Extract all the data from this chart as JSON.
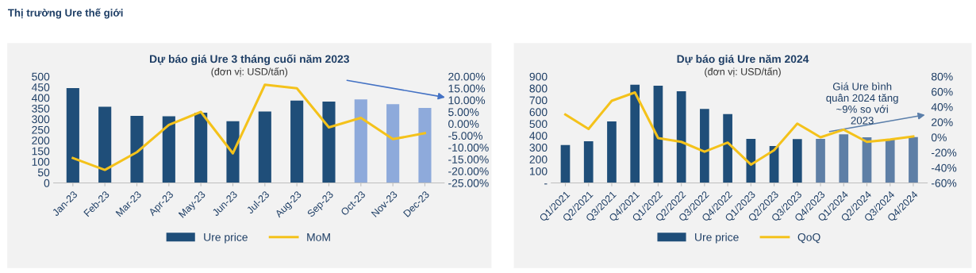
{
  "chart_data": [
    {
      "type": "bar",
      "title": "Dự báo giá Ure 3 tháng cuối năm 2023",
      "subtitle": "(đơn vị: USD/tấn)",
      "annotations": [
        "Thị trường Ure thế giới"
      ],
      "categories": [
        "Jan-23",
        "Feb-23",
        "Mar-23",
        "Apr-23",
        "May-23",
        "Jun-23",
        "Jul-23",
        "Aug-23",
        "Sep-23",
        "Oct-23",
        "Nov-23",
        "Dec-23"
      ],
      "series": [
        {
          "name": "Ure price",
          "color": "#1f4e79",
          "colors": [
            "#1f4e79",
            "#1f4e79",
            "#1f4e79",
            "#1f4e79",
            "#1f4e79",
            "#1f4e79",
            "#1f4e79",
            "#1f4e79",
            "#1f4e79",
            "#8eaadb",
            "#8eaadb",
            "#8eaadb"
          ],
          "values": [
            445,
            358,
            315,
            313,
            330,
            290,
            335,
            387,
            382,
            392,
            370,
            352
          ]
        },
        {
          "name": "MoM",
          "type": "line",
          "axis": "y2",
          "color": "#f4c21b",
          "values": [
            -14.5,
            -19.5,
            -12,
            -0.5,
            5,
            -12.5,
            16.5,
            15,
            -1.5,
            2.5,
            -6.5,
            -4
          ]
        }
      ],
      "ylim": [
        0,
        500
      ],
      "yticks": [
        0,
        50,
        100,
        150,
        200,
        250,
        300,
        350,
        400,
        450,
        500
      ],
      "y2lim": [
        -25,
        20
      ],
      "y2ticks": [
        {
          "value": -25,
          "label": "-25.00%"
        },
        {
          "value": -20,
          "label": "-20.00%"
        },
        {
          "value": -15,
          "label": "-15.00%"
        },
        {
          "value": -10,
          "label": "-10.00%"
        },
        {
          "value": -5,
          "label": "-5.00%"
        },
        {
          "value": 0,
          "label": "0.00%"
        },
        {
          "value": 5,
          "label": "5.00%"
        },
        {
          "value": 10,
          "label": "10.00%"
        },
        {
          "value": 15,
          "label": "15.00%"
        },
        {
          "value": 20,
          "label": "20.00%"
        }
      ],
      "legend": "bottom",
      "marker": "none"
    },
    {
      "type": "bar",
      "title": "Dự báo giá Ure năm 2024",
      "subtitle": "(đơn vị: USD/tấn)",
      "annotations": [
        "Giá Ure bình\nquân 2024 tăng\n~9% so với\n2023"
      ],
      "categories": [
        "Q1/2021",
        "Q2/2021",
        "Q3/2021",
        "Q4/2021",
        "Q1/2022",
        "Q2/2022",
        "Q3/2022",
        "Q4/2022",
        "Q1/2023",
        "Q2/2023",
        "Q3/2023",
        "Q4/2023",
        "Q1/2024",
        "Q2/2024",
        "Q3/2024",
        "Q4/2024"
      ],
      "series": [
        {
          "name": "Ure price",
          "color": "#1f4e79",
          "colors": [
            "#1f4e79",
            "#1f4e79",
            "#1f4e79",
            "#1f4e79",
            "#1f4e79",
            "#1f4e79",
            "#1f4e79",
            "#1f4e79",
            "#1f4e79",
            "#1f4e79",
            "#1f4e79",
            "#5e7fa6",
            "#5e7fa6",
            "#5e7fa6",
            "#5e7fa6",
            "#5e7fa6"
          ],
          "values": [
            320,
            352,
            520,
            830,
            822,
            775,
            625,
            582,
            372,
            312,
            370,
            372,
            410,
            385,
            370,
            388
          ]
        },
        {
          "name": "QoQ",
          "type": "line",
          "axis": "y2",
          "color": "#f4c21b",
          "values": [
            30,
            11,
            48,
            59,
            -1,
            -6,
            -19,
            -7,
            -36,
            -17,
            18,
            0,
            10,
            -6,
            -3,
            1
          ]
        }
      ],
      "ylim": [
        0,
        900
      ],
      "yticks": [
        {
          "value": 0,
          "label": "-"
        },
        100,
        200,
        300,
        400,
        500,
        600,
        700,
        800,
        900
      ],
      "y2lim": [
        -60,
        80
      ],
      "y2ticks": [
        {
          "value": -60,
          "label": "-60%"
        },
        {
          "value": -40,
          "label": "-40%"
        },
        {
          "value": -20,
          "label": "-20%"
        },
        {
          "value": 0,
          "label": "0%"
        },
        {
          "value": 20,
          "label": "20%"
        },
        {
          "value": 40,
          "label": "40%"
        },
        {
          "value": 60,
          "label": "60%"
        },
        {
          "value": 80,
          "label": "80%"
        }
      ],
      "legend": "bottom",
      "marker": "none"
    }
  ]
}
